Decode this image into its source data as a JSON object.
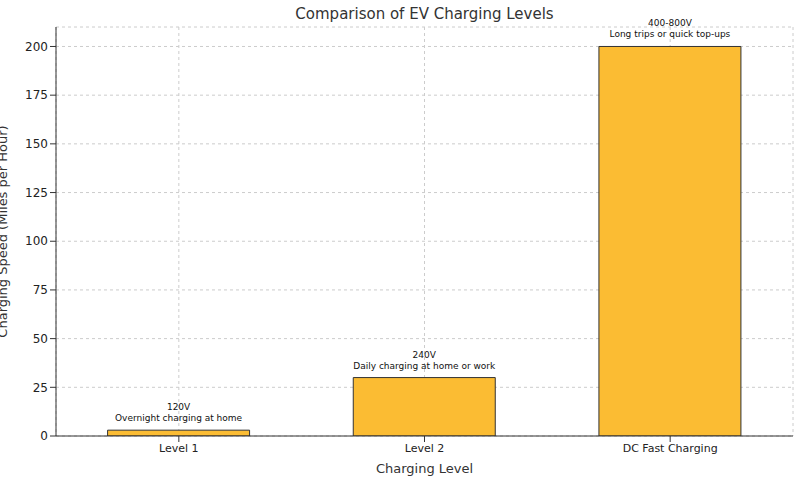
{
  "chart_data": {
    "type": "bar",
    "title": "Comparison of EV Charging Levels",
    "x_label": "Charging Level",
    "y_label": "Charging Speed (Miles per Hour)",
    "categories": [
      "Level 1",
      "Level 2",
      "DC Fast Charging"
    ],
    "values": [
      3,
      30,
      200
    ],
    "annotations": [
      [
        "120V",
        "Overnight charging at home"
      ],
      [
        "240V",
        "Daily charging at home or work"
      ],
      [
        "400-800V",
        "Long trips or quick top-ups"
      ]
    ],
    "color": "#fbbc33",
    "ylim": [
      0,
      210
    ],
    "yticks": [
      0,
      25,
      50,
      75,
      100,
      125,
      150,
      175,
      200
    ],
    "grid": true
  }
}
